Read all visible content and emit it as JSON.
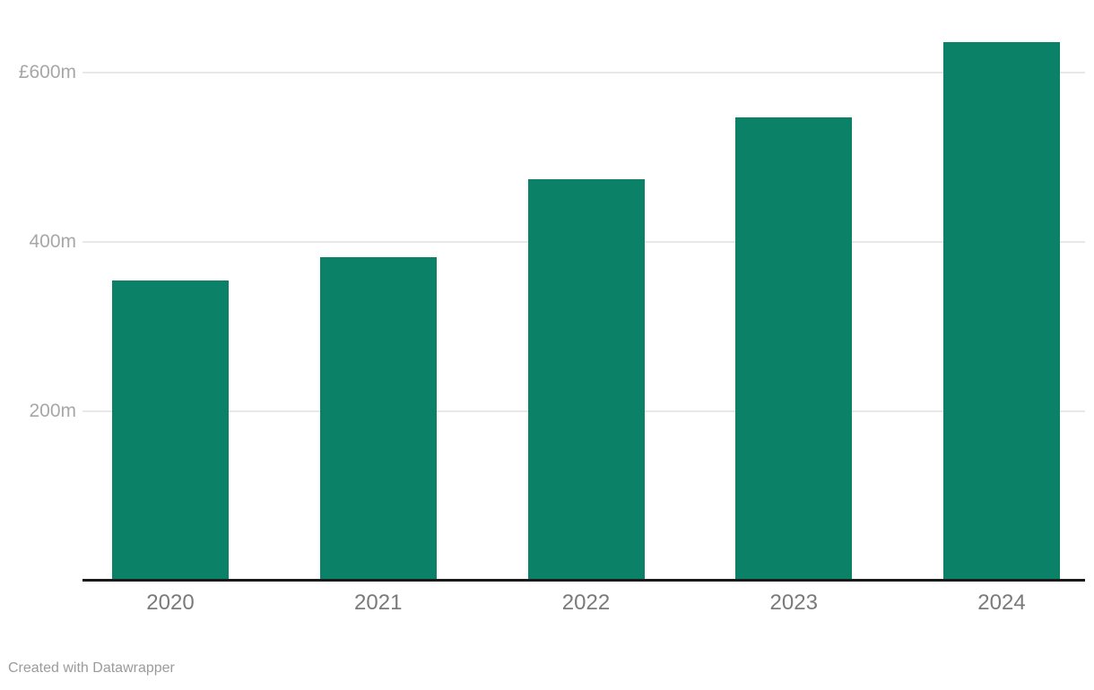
{
  "chart_data": {
    "type": "bar",
    "title": "",
    "categories": [
      "2020",
      "2021",
      "2022",
      "2023",
      "2024"
    ],
    "values": [
      355,
      382,
      474,
      547,
      636
    ],
    "unit": "£m",
    "xlabel": "",
    "ylabel": "",
    "ylim": [
      0,
      650
    ],
    "grid": "horizontal",
    "legend": "none",
    "y_ticks": [
      {
        "value": 200,
        "label": "200m"
      },
      {
        "value": 400,
        "label": "400m"
      },
      {
        "value": 600,
        "label": "£600m"
      }
    ]
  },
  "footer": {
    "credit": "Created with Datawrapper"
  },
  "colors": {
    "bar": "#0b8168",
    "grid": "#e8e8e8",
    "baseline": "#1a1a1a",
    "y_tick_label": "#a7a7a7",
    "x_tick_label": "#7a7a7a",
    "credit": "#9b9b9b",
    "background": "#ffffff"
  }
}
